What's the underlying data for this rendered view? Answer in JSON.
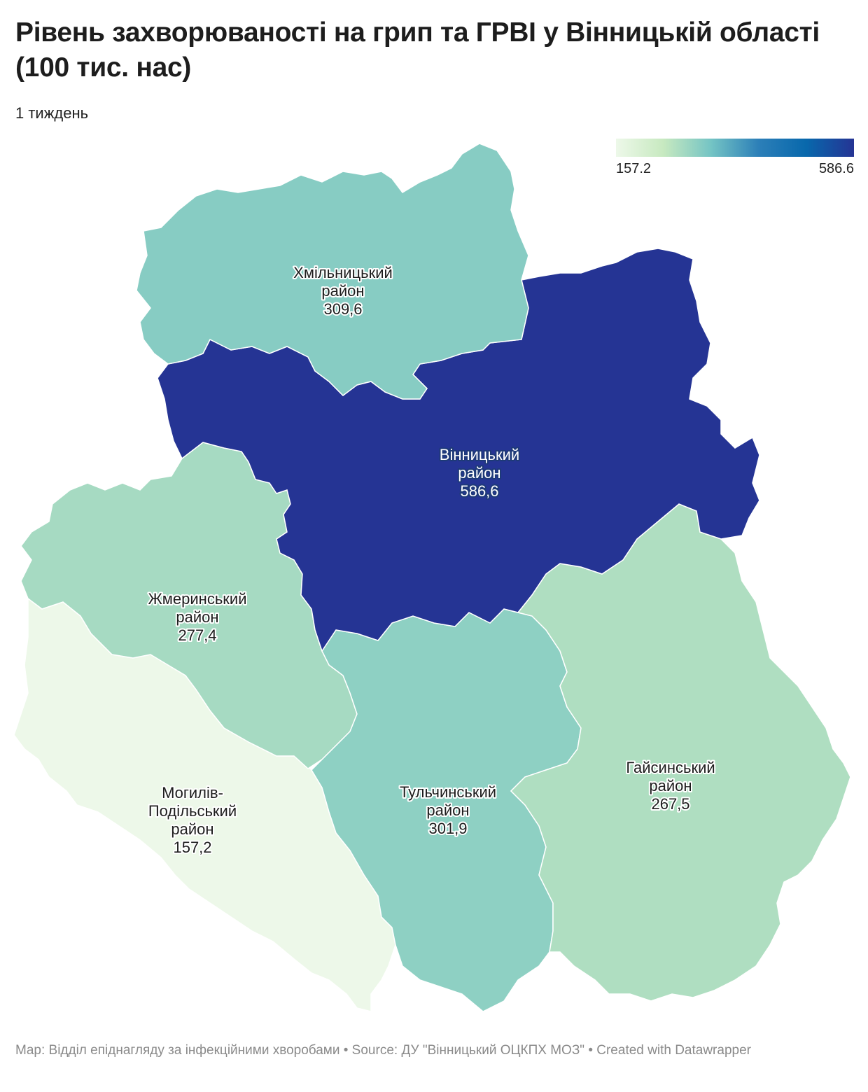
{
  "title": "Рівень захворюваності на грип та ГРВІ у Вінницькій області (100 тис. нас)",
  "subtitle": "1 тиждень",
  "legend": {
    "min_label": "157.2",
    "max_label": "586.6",
    "colors": [
      "#edf8e9",
      "#c7e9c0",
      "#74c4c4",
      "#2c7fb8",
      "#0868ac",
      "#253494"
    ]
  },
  "chart_data": {
    "type": "choropleth",
    "value_range": [
      157.2,
      586.6
    ],
    "regions": [
      {
        "id": "khmilnyk",
        "name_lines": [
          "Хмільницький",
          "район"
        ],
        "value_label": "309,6",
        "value": 309.6
      },
      {
        "id": "vinnytsia",
        "name_lines": [
          "Вінницький",
          "район"
        ],
        "value_label": "586,6",
        "value": 586.6
      },
      {
        "id": "zhmerynka",
        "name_lines": [
          "Жмеринський",
          "район"
        ],
        "value_label": "277,4",
        "value": 277.4
      },
      {
        "id": "mohyliv",
        "name_lines": [
          "Могилів-",
          "Подільський",
          "район"
        ],
        "value_label": "157,2",
        "value": 157.2
      },
      {
        "id": "tulchyn",
        "name_lines": [
          "Тульчинський",
          "район"
        ],
        "value_label": "301,9",
        "value": 301.9
      },
      {
        "id": "haisyn",
        "name_lines": [
          "Гайсинський",
          "район"
        ],
        "value_label": "267,5",
        "value": 267.5
      }
    ]
  },
  "footer": {
    "text": "Map: Відділ епіднагляду за інфекційними хворобами  • Source: ДУ \"Вінницький ОЦКПХ МОЗ\" • Created with Datawrapper"
  }
}
